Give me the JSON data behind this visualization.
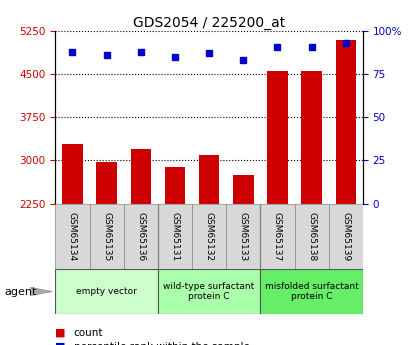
{
  "title": "GDS2054 / 225200_at",
  "samples": [
    "GSM65134",
    "GSM65135",
    "GSM65136",
    "GSM65131",
    "GSM65132",
    "GSM65133",
    "GSM65137",
    "GSM65138",
    "GSM65139"
  ],
  "counts": [
    3280,
    2980,
    3200,
    2880,
    3100,
    2750,
    4560,
    4550,
    5100
  ],
  "percentiles": [
    88,
    86,
    88,
    85,
    87,
    83,
    91,
    91,
    93
  ],
  "ylim_left": [
    2250,
    5250
  ],
  "ylim_right": [
    0,
    100
  ],
  "yticks_left": [
    2250,
    3000,
    3750,
    4500,
    5250
  ],
  "yticks_right": [
    0,
    25,
    50,
    75,
    100
  ],
  "bar_color": "#cc0000",
  "marker_color": "#0000cc",
  "groups": [
    {
      "label": "empty vector",
      "start": 0,
      "end": 3,
      "color": "#ccffcc"
    },
    {
      "label": "wild-type surfactant\nprotein C",
      "start": 3,
      "end": 6,
      "color": "#aaffaa"
    },
    {
      "label": "misfolded surfactant\nprotein C",
      "start": 6,
      "end": 9,
      "color": "#66ee66"
    }
  ],
  "legend_count_color": "#cc0000",
  "legend_marker_color": "#0000cc",
  "agent_label": "agent",
  "background_color": "#ffffff",
  "right_ytick_labels": [
    "0",
    "25",
    "50",
    "75",
    "100%"
  ],
  "sample_cell_color": "#d8d8d8",
  "grid_linestyle": "dotted",
  "bar_width": 0.6
}
